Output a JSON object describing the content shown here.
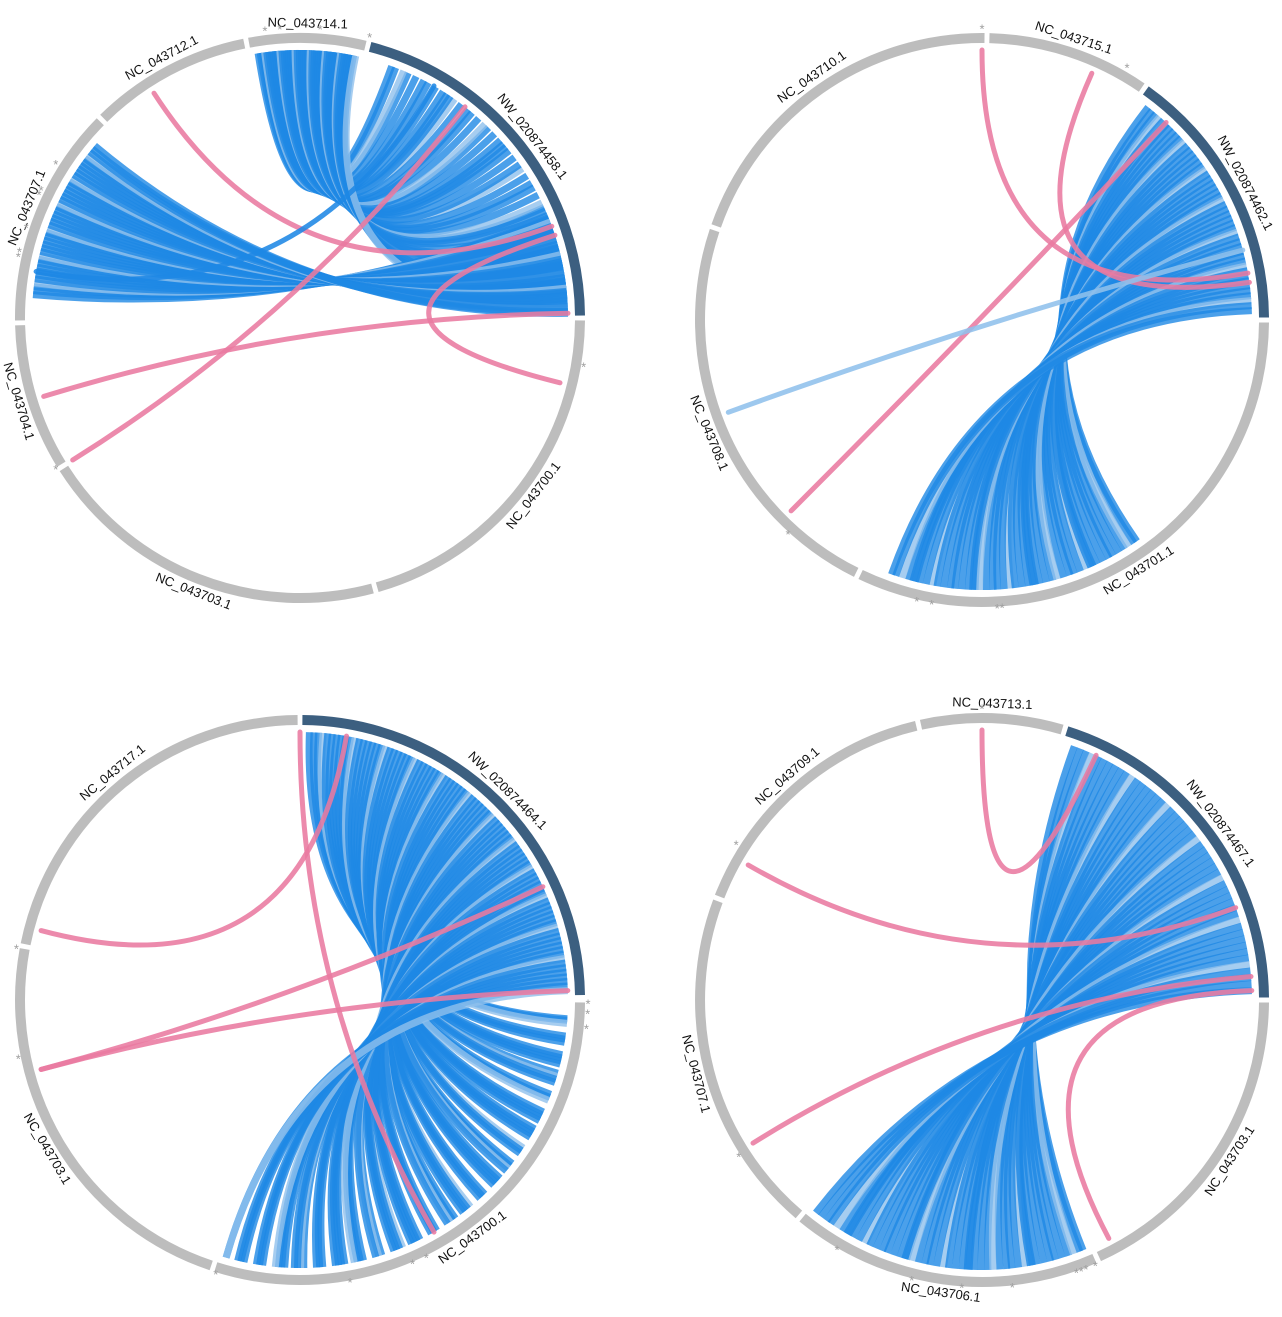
{
  "colors": {
    "ring": "#bdbdbd",
    "focus": "#3c5f80",
    "link": "#1e88e5",
    "link_light": "#90c0ec",
    "pink": "#e97aa0",
    "star": "#9e9e9e"
  },
  "panels": [
    {
      "focus": "NW_020874458.1",
      "segments": [
        {
          "label": "NC_043714.1",
          "start": -10.5,
          "end": 13.5,
          "focus": false
        },
        {
          "label": "NW_020874458.1",
          "start": 14.5,
          "end": 89.5,
          "focus": true
        },
        {
          "label": "NC_043700.1",
          "start": 90.5,
          "end": 164.0,
          "focus": false
        },
        {
          "label": "NC_043703.1",
          "start": 165.0,
          "end": 237.5,
          "focus": false
        },
        {
          "label": "NC_043704.1",
          "start": 238.5,
          "end": 268.5,
          "focus": false
        },
        {
          "label": "NC_043707.1",
          "start": 269.5,
          "end": 314.5,
          "focus": false
        },
        {
          "label": "NC_043712.1",
          "start": 315.5,
          "end": 348.5,
          "focus": false
        }
      ],
      "bundles": [
        {
          "from": [
            -9,
            12
          ],
          "to": [
            20,
            86
          ],
          "count": 46,
          "color": "link"
        },
        {
          "from": [
            275,
            310
          ],
          "to": [
            68,
            89
          ],
          "count": 42,
          "color": "link"
        }
      ],
      "links": [
        {
          "from": 327,
          "to": 70,
          "color": "pink"
        },
        {
          "from": 253,
          "to": 89,
          "color": "pink"
        },
        {
          "from": 238,
          "to": 38,
          "color": "pink"
        },
        {
          "from": 72,
          "to": 104,
          "color": "pink"
        },
        {
          "from": 280,
          "to": 30,
          "color": "link"
        }
      ],
      "stars": [
        -7,
        -4,
        4,
        14,
        302,
        282,
        283,
        288,
        295,
        296,
        100,
        238
      ]
    },
    {
      "focus": "NW_020874462.1",
      "segments": [
        {
          "label": "NC_043715.1",
          "start": 1.5,
          "end": 34.5,
          "focus": false
        },
        {
          "label": "NW_020874462.1",
          "start": 35.5,
          "end": 89.5,
          "focus": true
        },
        {
          "label": "NC_043701.1",
          "start": 90.5,
          "end": 205.5,
          "focus": false
        },
        {
          "label": "NC_043708.1",
          "start": 206.5,
          "end": 288.5,
          "focus": false
        },
        {
          "label": "NC_043710.1",
          "start": 289.5,
          "end": 360.5,
          "focus": false
        }
      ],
      "bundles": [
        {
          "from": [
            38,
            88
          ],
          "to": [
            145,
            200
          ],
          "count": 48,
          "color": "link"
        }
      ],
      "links": [
        {
          "from": 0,
          "to": 80,
          "color": "pink"
        },
        {
          "from": 24,
          "to": 82,
          "color": "pink"
        },
        {
          "from": 225,
          "to": 43,
          "color": "pink"
        },
        {
          "from": 250,
          "to": 75,
          "color": "link_light"
        }
      ],
      "stars": [
        0,
        30,
        190,
        193,
        176,
        177,
        222
      ]
    },
    {
      "focus": "NW_020874464.1",
      "segments": [
        {
          "label": "NW_020874464.1",
          "start": 0.5,
          "end": 89.0,
          "focus": true
        },
        {
          "label": "NC_043700.1",
          "start": 90.5,
          "end": 197.5,
          "focus": false
        },
        {
          "label": "NC_043703.1",
          "start": 198.5,
          "end": 280.5,
          "focus": false
        },
        {
          "label": "NC_043717.1",
          "start": 281.5,
          "end": 359.5,
          "focus": false
        }
      ],
      "bundles": [
        {
          "from": [
            2,
            88
          ],
          "to": [
            94,
            196
          ],
          "count": 88,
          "color": "link"
        }
      ],
      "links": [
        {
          "from": 285,
          "to": 10,
          "color": "pink"
        },
        {
          "from": 255,
          "to": 65,
          "color": "pink"
        },
        {
          "from": 255,
          "to": 88,
          "color": "pink"
        },
        {
          "from": 0,
          "to": 150,
          "color": "pink"
        }
      ],
      "stars": [
        91,
        93,
        96,
        154,
        157,
        170,
        197,
        280,
        258
      ]
    },
    {
      "focus": "NW_020874467.1",
      "segments": [
        {
          "label": "NC_043713.1",
          "start": -12.5,
          "end": 16.5,
          "focus": false
        },
        {
          "label": "NW_020874467.1",
          "start": 17.5,
          "end": 89.5,
          "focus": true
        },
        {
          "label": "NC_043703.1",
          "start": 90.5,
          "end": 155.5,
          "focus": false
        },
        {
          "label": "NC_043706.1",
          "start": 156.5,
          "end": 219.5,
          "focus": false
        },
        {
          "label": "NC_043707.1",
          "start": 220.5,
          "end": 290.5,
          "focus": false
        },
        {
          "label": "NC_043709.1",
          "start": 291.5,
          "end": 346.5,
          "focus": false
        }
      ],
      "bundles": [
        {
          "from": [
            20,
            88
          ],
          "to": [
            158,
            218
          ],
          "count": 50,
          "color": "link"
        }
      ],
      "links": [
        {
          "from": 0,
          "to": 25,
          "color": "pink"
        },
        {
          "from": 300,
          "to": 70,
          "color": "pink"
        },
        {
          "from": 238,
          "to": 85,
          "color": "pink"
        },
        {
          "from": 88,
          "to": 152,
          "color": "pink"
        }
      ],
      "stars": [
        0,
        157,
        159,
        160,
        161,
        174,
        184,
        194,
        210,
        237,
        302
      ]
    }
  ]
}
